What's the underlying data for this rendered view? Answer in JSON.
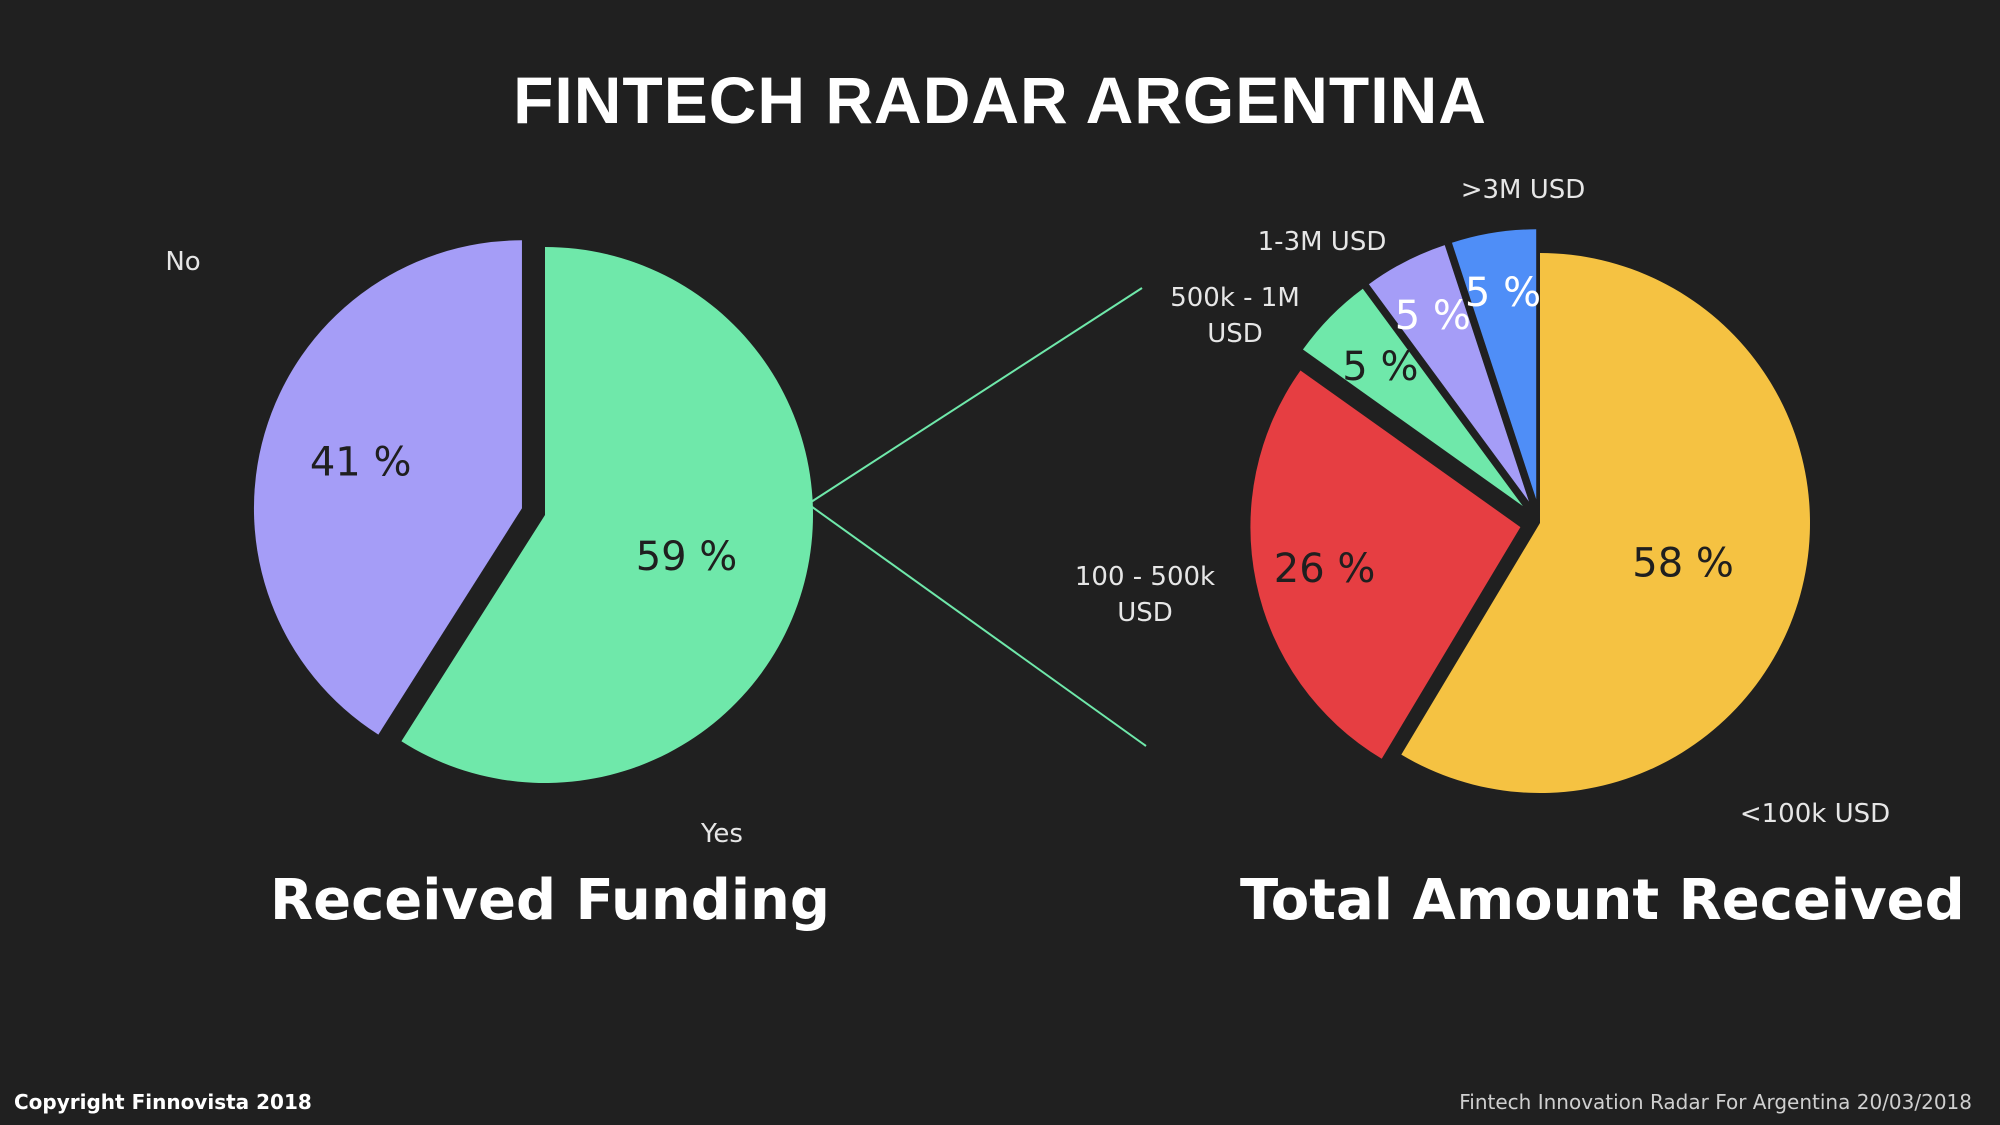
{
  "title": "FINTECH RADAR ARGENTINA",
  "chart_data": [
    {
      "type": "pie",
      "title": "Received Funding",
      "slices": [
        {
          "label": "Yes",
          "value": 59,
          "display": "59 %",
          "color": "#6fe8aa"
        },
        {
          "label": "No",
          "value": 41,
          "display": "41 %",
          "color": "#a59df7"
        }
      ]
    },
    {
      "type": "pie",
      "title": "Total Amount Received",
      "slices": [
        {
          "label": "<100k USD",
          "value": 58,
          "display": "58 %",
          "color": "#f5c242"
        },
        {
          "label": "100 - 500k USD",
          "value": 26,
          "display": "26 %",
          "color": "#e63e42"
        },
        {
          "label": "500k - 1M USD",
          "value": 5,
          "display": "5 %",
          "color": "#6fe8aa"
        },
        {
          "label": "1-3M USD",
          "value": 5,
          "display": "5 %",
          "color": "#a59df7"
        },
        {
          "label": ">3M USD",
          "value": 5,
          "display": "5 %",
          "color": "#4f8ef7"
        }
      ]
    }
  ],
  "connector_color": "#6fe8aa",
  "footer": {
    "copyright": "Copyright Finnovista 2018",
    "source": "Fintech Innovation Radar For Argentina  20/03/2018"
  }
}
